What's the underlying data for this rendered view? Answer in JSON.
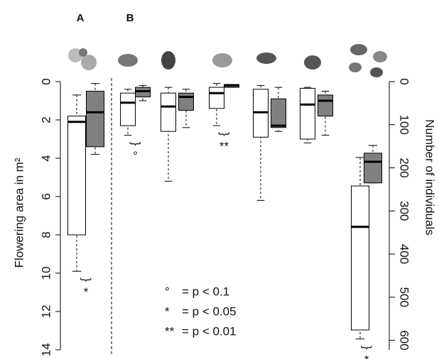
{
  "chart_data": {
    "type": "box",
    "groups": [
      "A",
      "B"
    ],
    "y_label": "Flowering area in m²",
    "y2_label": "Number of individuals",
    "ylim": [
      0,
      14
    ],
    "yticks": [
      0,
      2,
      4,
      6,
      8,
      10,
      12,
      14
    ],
    "y2lim": [
      0,
      622
    ],
    "y2ticks": [
      0,
      100,
      200,
      300,
      400,
      500,
      600
    ],
    "colors": [
      "#ffffff",
      "#808080"
    ],
    "pairs": [
      {
        "white": [
          0.7,
          1.8,
          2.1,
          8.0,
          9.9
        ],
        "grey": [
          0.1,
          0.5,
          1.6,
          3.4,
          3.8
        ],
        "annotation": "*"
      },
      {
        "white": [
          0.4,
          0.6,
          1.1,
          2.3,
          2.8
        ],
        "grey": [
          0.2,
          0.3,
          0.5,
          0.8,
          1.0
        ],
        "annotation": "°"
      },
      {
        "white": [
          0.3,
          0.6,
          1.3,
          2.6,
          5.2
        ],
        "grey": [
          0.4,
          0.6,
          0.8,
          1.5,
          2.4
        ]
      },
      {
        "white": [
          0.1,
          0.3,
          0.6,
          1.4,
          2.3
        ],
        "grey": [
          0.15,
          0.15,
          0.2,
          0.3,
          0.3
        ],
        "annotation": "**"
      },
      {
        "white": [
          0.2,
          0.4,
          1.6,
          2.9,
          6.2
        ],
        "grey": [
          0.3,
          0.9,
          2.3,
          2.4,
          2.6
        ]
      },
      {
        "white": [
          0.3,
          0.35,
          1.2,
          3.0,
          3.2
        ],
        "grey": [
          0.5,
          0.7,
          1.0,
          1.8,
          2.8
        ]
      },
      {
        "axis": "y2",
        "white": [
          176,
          242,
          337,
          576,
          597
        ],
        "grey": [
          148,
          166,
          186,
          235,
          235
        ],
        "annotation": "*"
      }
    ],
    "legend": [
      {
        "symbol": "°",
        "text": "= p < 0.1"
      },
      {
        "symbol": "*",
        "text": "= p < 0.05"
      },
      {
        "symbol": "**",
        "text": "= p < 0.01"
      }
    ]
  }
}
